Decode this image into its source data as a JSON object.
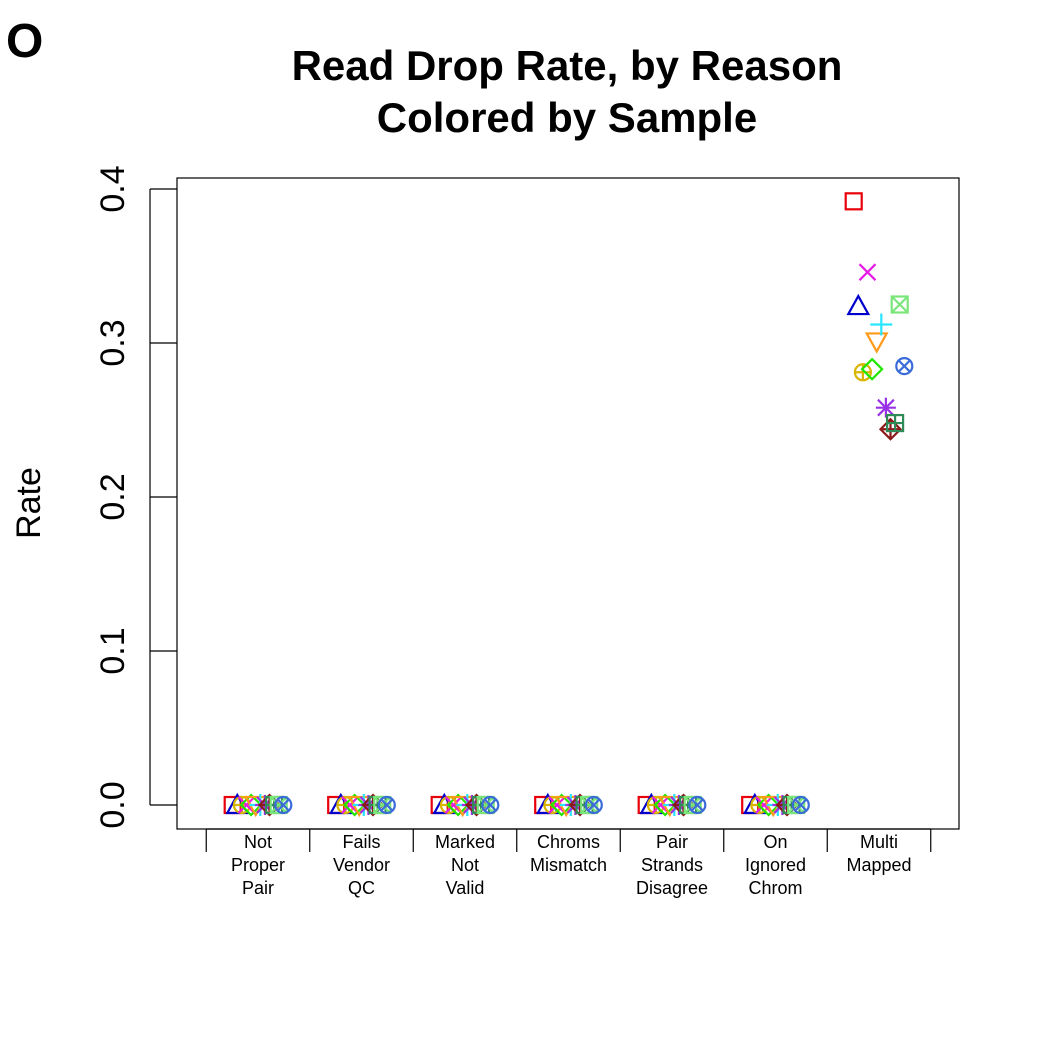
{
  "panel_label": "O",
  "chart_data": {
    "type": "scatter",
    "title": "Read Drop Rate, by Reason",
    "subtitle": "Colored by Sample",
    "ylabel": "Rate",
    "xlabel": "",
    "ylim": [
      0,
      0.4
    ],
    "yticks": [
      "0.0",
      "0.1",
      "0.2",
      "0.3",
      "0.4"
    ],
    "grid": false,
    "legend": "none",
    "categories": [
      [
        "Not",
        "Proper",
        "Pair"
      ],
      [
        "Fails",
        "Vendor",
        "QC"
      ],
      [
        "Marked",
        "Not",
        "Valid"
      ],
      [
        "Chroms",
        "Mismatch"
      ],
      [
        "Pair",
        "Strands",
        "Disagree"
      ],
      [
        "On",
        "Ignored",
        "Chrom"
      ],
      [
        "Multi",
        "Mapped"
      ]
    ],
    "series": [
      {
        "marker": "square",
        "color": "#e8000b",
        "values": [
          0,
          0,
          0,
          0,
          0,
          0,
          0.392
        ]
      },
      {
        "marker": "triangle-up",
        "color": "#0000cd",
        "values": [
          0,
          0,
          0,
          0,
          0,
          0,
          0.324
        ]
      },
      {
        "marker": "circle-plus",
        "color": "#d9b400",
        "values": [
          0,
          0,
          0,
          0,
          0,
          0,
          0.281
        ]
      },
      {
        "marker": "x",
        "color": "#e619e6",
        "values": [
          0,
          0,
          0,
          0,
          0,
          0,
          0.346
        ]
      },
      {
        "marker": "diamond",
        "color": "#21e600",
        "values": [
          0,
          0,
          0,
          0,
          0,
          0,
          0.283
        ]
      },
      {
        "marker": "triangle-down",
        "color": "#ff9a1a",
        "values": [
          0,
          0,
          0,
          0,
          0,
          0,
          0.301
        ]
      },
      {
        "marker": "plus",
        "color": "#27e6ff",
        "values": [
          0,
          0,
          0,
          0,
          0,
          0,
          0.312
        ]
      },
      {
        "marker": "asterisk",
        "color": "#9932e6",
        "values": [
          0,
          0,
          0,
          0,
          0,
          0,
          0.258
        ]
      },
      {
        "marker": "diamond-plus",
        "color": "#8b1a1a",
        "values": [
          0,
          0,
          0,
          0,
          0,
          0,
          0.244
        ]
      },
      {
        "marker": "square-plus",
        "color": "#2e8b57",
        "values": [
          0,
          0,
          0,
          0,
          0,
          0,
          0.248
        ]
      },
      {
        "marker": "square-x",
        "color": "#7ae67a",
        "values": [
          0,
          0,
          0,
          0,
          0,
          0,
          0.325
        ]
      },
      {
        "marker": "circle-x",
        "color": "#3a6bd9",
        "values": [
          0,
          0,
          0,
          0,
          0,
          0,
          0.285
        ]
      }
    ]
  }
}
